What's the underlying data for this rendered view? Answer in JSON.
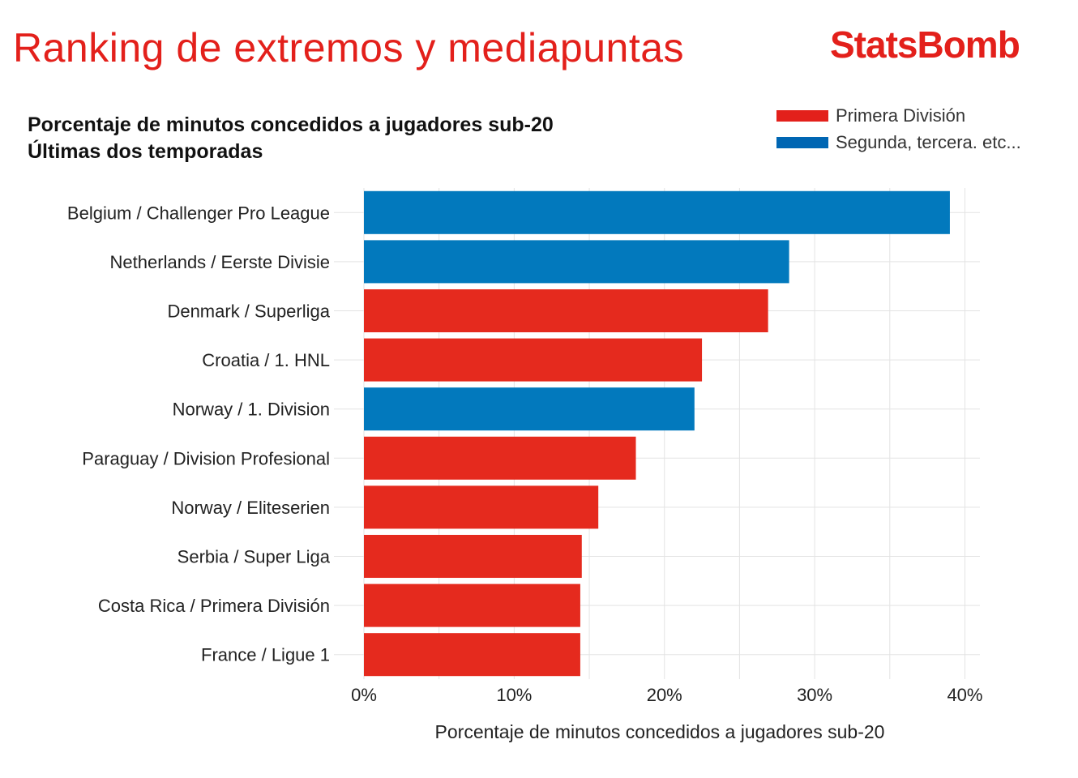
{
  "header": {
    "title": "Ranking de extremos y mediapuntas",
    "logo_text": "StatsBomb",
    "subtitle_line1": "Porcentaje de minutos concedidos a jugadores sub-20",
    "subtitle_line2": "Últimas dos temporadas"
  },
  "legend": {
    "items": [
      {
        "label": "Primera División",
        "color": "#e3201b"
      },
      {
        "label": "Segunda, tercera. etc...",
        "color": "#0066b3"
      }
    ]
  },
  "chart_data": {
    "type": "bar",
    "orientation": "horizontal",
    "xlabel": "Porcentaje de minutos concedidos a jugadores sub-20",
    "ylabel": "",
    "xlim": [
      0,
      41
    ],
    "x_ticks": [
      0,
      10,
      20,
      30,
      40
    ],
    "x_tick_labels": [
      "0%",
      "10%",
      "20%",
      "30%",
      "40%"
    ],
    "grid": true,
    "legend_position": "top-right",
    "colors": {
      "Primera División": "#e52a1e",
      "Segunda, tercera. etc...": "#0279bd"
    },
    "categories": [
      "Belgium / Challenger Pro League",
      "Netherlands / Eerste Divisie",
      "Denmark / Superliga",
      "Croatia / 1. HNL",
      "Norway / 1. Division",
      "Paraguay / Division Profesional",
      "Norway / Eliteserien",
      "Serbia / Super Liga",
      "Costa Rica / Primera División",
      "France / Ligue 1"
    ],
    "values": [
      39.0,
      28.3,
      26.9,
      22.5,
      22.0,
      18.1,
      15.6,
      14.5,
      14.4,
      14.4
    ],
    "groups": [
      "Segunda, tercera. etc...",
      "Segunda, tercera. etc...",
      "Primera División",
      "Primera División",
      "Segunda, tercera. etc...",
      "Primera División",
      "Primera División",
      "Primera División",
      "Primera División",
      "Primera División"
    ]
  }
}
